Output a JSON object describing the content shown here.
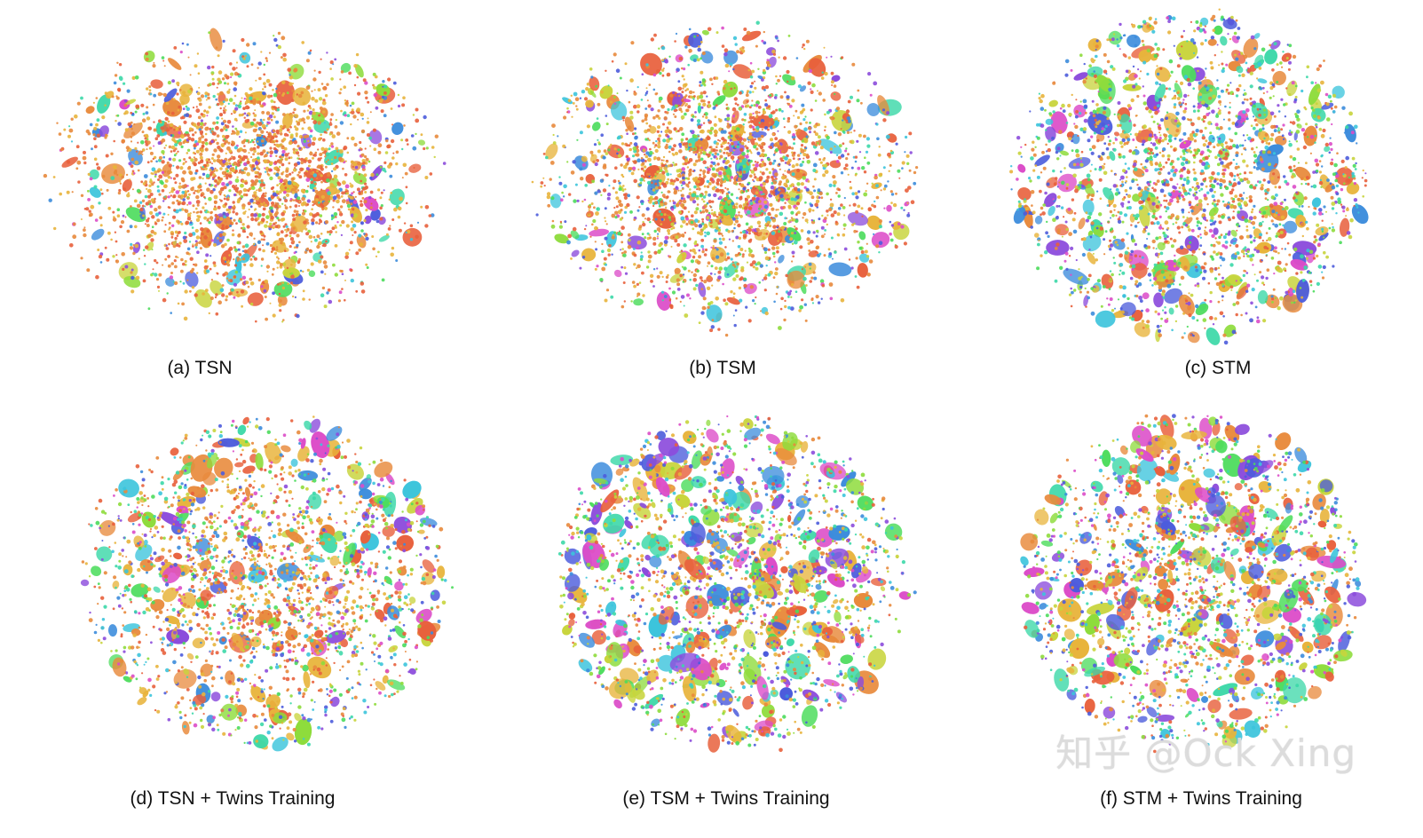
{
  "chart_data": [
    {
      "type": "scatter",
      "caption": "(a) TSN",
      "title": "",
      "xlabel": "",
      "ylabel": "",
      "series": [
        {
          "x": [
            0.0
          ],
          "y": [
            0.0
          ]
        }
      ]
    },
    {
      "type": "scatter",
      "caption": "(b) TSM",
      "title": "",
      "xlabel": "",
      "ylabel": "",
      "series": [
        {
          "x": [
            0.0
          ],
          "y": [
            0.0
          ]
        }
      ]
    },
    {
      "type": "scatter",
      "caption": "(c) STM",
      "title": "",
      "xlabel": "",
      "ylabel": "",
      "series": [
        {
          "x": [
            0.0
          ],
          "y": [
            0.0
          ]
        }
      ]
    },
    {
      "type": "scatter",
      "caption": "(d) TSN + Twins Training",
      "title": "",
      "xlabel": "",
      "ylabel": "",
      "series": [
        {
          "x": [
            0.0
          ],
          "y": [
            0.0
          ]
        }
      ]
    },
    {
      "type": "scatter",
      "caption": "(e) TSM + Twins Training",
      "title": "",
      "xlabel": "",
      "ylabel": "",
      "series": [
        {
          "x": [
            0.0
          ],
          "y": [
            0.0
          ]
        }
      ]
    },
    {
      "type": "scatter",
      "caption": "(f) STM + Twins Training",
      "title": "",
      "xlabel": "",
      "ylabel": "",
      "series": [
        {
          "x": [
            0.0
          ],
          "y": [
            0.0
          ]
        }
      ]
    }
  ],
  "palette": [
    "#e8603c",
    "#e88a3c",
    "#e8b43c",
    "#c8d43c",
    "#8edc3c",
    "#4cdc5c",
    "#3cd8a8",
    "#3cc4dc",
    "#3c8cdc",
    "#4c5cdc",
    "#8c4cdc",
    "#dc4cc8"
  ],
  "watermark": "知乎 @Ock Xing"
}
